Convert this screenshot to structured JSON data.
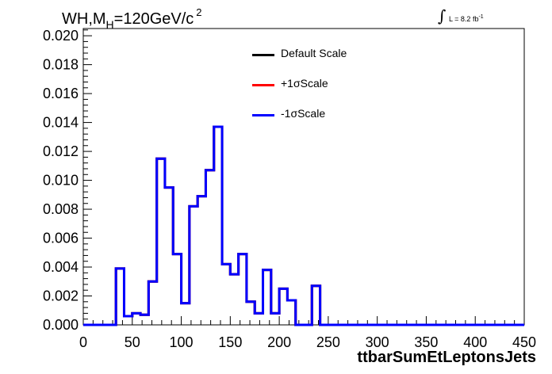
{
  "title": {
    "main": "WH,M",
    "sub": "H",
    "rest": "=120GeV/c",
    "sup": "2"
  },
  "lumi": {
    "integral": "∫",
    "text": "L = 8.2 fb",
    "sup": "-1"
  },
  "chart_data": {
    "type": "line",
    "xlabel": "ttbarSumEtLeptonsJets",
    "ylabel": "",
    "xlim": [
      0,
      450
    ],
    "ylim": [
      0,
      0.0205
    ],
    "xticks": [
      "0",
      "50",
      "100",
      "150",
      "200",
      "250",
      "300",
      "350",
      "400",
      "450"
    ],
    "yticks": [
      "0.000",
      "0.002",
      "0.004",
      "0.006",
      "0.008",
      "0.010",
      "0.012",
      "0.014",
      "0.016",
      "0.018",
      "0.020"
    ],
    "bin_edges": [
      0,
      8.33,
      16.67,
      25,
      33.33,
      41.67,
      50,
      58.33,
      66.67,
      75,
      83.33,
      91.67,
      100,
      108.33,
      116.67,
      125,
      133.33,
      141.67,
      150,
      158.33,
      166.67,
      175,
      183.33,
      191.67,
      200,
      208.33,
      216.67,
      225,
      233.33,
      241.67,
      250,
      258.33,
      266.67,
      275,
      283.33,
      291.67,
      300,
      308.33,
      316.67,
      325,
      333.33,
      341.67,
      350,
      358.33,
      366.67,
      375,
      383.33,
      391.67,
      400,
      408.33,
      416.67,
      425,
      433.33,
      441.67,
      450
    ],
    "series": [
      {
        "name": "Default Scale",
        "color": "#000000",
        "values": [
          0,
          0,
          0,
          0,
          0.0039,
          0.0006,
          0.0008,
          0.0007,
          0.003,
          0.0115,
          0.0095,
          0.0049,
          0.0015,
          0.0082,
          0.0089,
          0.0107,
          0.0137,
          0.0042,
          0.0035,
          0.0049,
          0.0016,
          0.0008,
          0.0038,
          0.0008,
          0.0025,
          0.0017,
          0,
          0,
          0.0027,
          0,
          0,
          0,
          0,
          0,
          0,
          0,
          0,
          0,
          0,
          0,
          0,
          0,
          0,
          0,
          0,
          0,
          0,
          0,
          0,
          0,
          0,
          0,
          0,
          0
        ]
      },
      {
        "name": "+1σScale",
        "color": "#ff0000",
        "values": [
          0,
          0,
          0,
          0,
          0.0039,
          0.0006,
          0.0008,
          0.0007,
          0.003,
          0.0115,
          0.0095,
          0.0049,
          0.0015,
          0.0082,
          0.0089,
          0.0107,
          0.0137,
          0.0042,
          0.0035,
          0.0049,
          0.0016,
          0.0008,
          0.0038,
          0.0008,
          0.0025,
          0.0017,
          0,
          0,
          0.0027,
          0,
          0,
          0,
          0,
          0,
          0,
          0,
          0,
          0,
          0,
          0,
          0,
          0,
          0,
          0,
          0,
          0,
          0,
          0,
          0,
          0,
          0,
          0,
          0,
          0
        ]
      },
      {
        "name": "-1σScale",
        "color": "#0000ff",
        "values": [
          0,
          0,
          0,
          0,
          0.0039,
          0.0006,
          0.0008,
          0.0007,
          0.003,
          0.0115,
          0.0095,
          0.0049,
          0.0015,
          0.0082,
          0.0089,
          0.0107,
          0.0137,
          0.0042,
          0.0035,
          0.0049,
          0.0016,
          0.0008,
          0.0038,
          0.0008,
          0.0025,
          0.0017,
          0,
          0,
          0.0027,
          0,
          0,
          0,
          0,
          0,
          0,
          0,
          0,
          0,
          0,
          0,
          0,
          0,
          0,
          0,
          0,
          0,
          0,
          0,
          0,
          0,
          0,
          0,
          0,
          0
        ]
      }
    ],
    "legend_position": "top-center",
    "grid": false
  }
}
